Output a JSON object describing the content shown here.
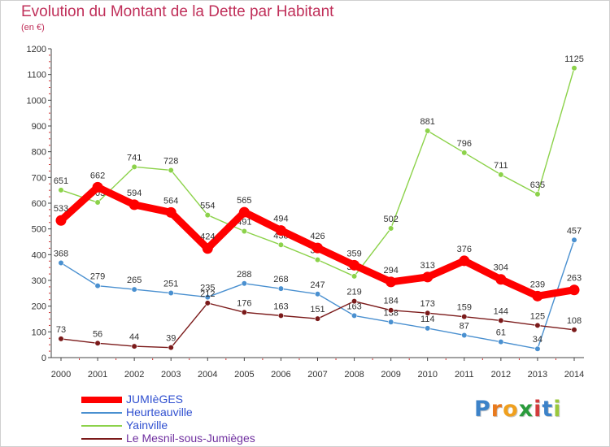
{
  "title": "Evolution du Montant de la Dette par Habitant",
  "subtitle": "(en €)",
  "logo": {
    "letters": [
      "P",
      "r",
      "o",
      "x",
      "i",
      "t",
      "i"
    ],
    "colors": [
      "#3c82c8",
      "#e87a1e",
      "#f0a01e",
      "#2a9b3c",
      "#d23c3c",
      "#3c82c8",
      "#9ac83c"
    ]
  },
  "chart_data": {
    "type": "line",
    "title": "Evolution du Montant de la Dette par Habitant",
    "ylabel": "(en €)",
    "xlabel": "",
    "x": [
      "2000",
      "2001",
      "2002",
      "2003",
      "2004",
      "2005",
      "2006",
      "2007",
      "2008",
      "2009",
      "2010",
      "2011",
      "2012",
      "2013",
      "2014"
    ],
    "ylim": [
      0,
      1200
    ],
    "yticks": [
      0,
      100,
      200,
      300,
      400,
      500,
      600,
      700,
      800,
      900,
      1000,
      1100,
      1200
    ],
    "grid": false,
    "legend_position": "bottom-left",
    "series": [
      {
        "name": "JUMIèGES",
        "color": "#ff0000",
        "emphasis": true,
        "values": [
          533,
          662,
          594,
          564,
          424,
          565,
          494,
          426,
          359,
          294,
          313,
          376,
          304,
          239,
          263
        ]
      },
      {
        "name": "Heurteauville",
        "color": "#4a90d0",
        "emphasis": false,
        "values": [
          368,
          279,
          265,
          251,
          235,
          288,
          268,
          247,
          163,
          138,
          114,
          87,
          61,
          34,
          457
        ]
      },
      {
        "name": "Yainville",
        "color": "#8cd24a",
        "emphasis": false,
        "values": [
          651,
          603,
          741,
          728,
          554,
          491,
          438,
          380,
          316,
          502,
          881,
          796,
          711,
          635,
          1125
        ]
      },
      {
        "name": "Le Mesnil-sous-Jumièges",
        "color": "#7b1a1a",
        "emphasis": false,
        "values": [
          73,
          56,
          44,
          39,
          212,
          176,
          163,
          151,
          219,
          184,
          173,
          159,
          144,
          125,
          108
        ]
      }
    ]
  }
}
